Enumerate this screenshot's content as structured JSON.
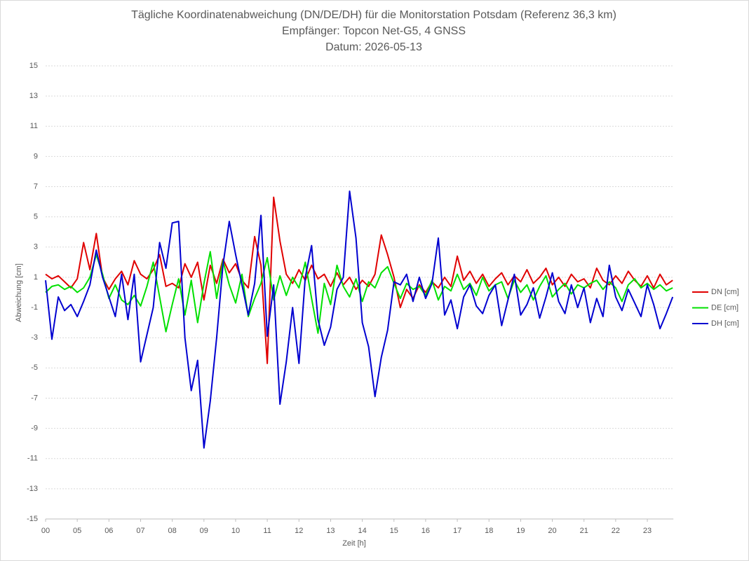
{
  "chart_data": {
    "type": "line",
    "title": "Tägliche Koordinatenabweichung (DN/DE/DH) für die Monitorstation Potsdam (Referenz 36,3 km)",
    "subtitle": [
      "Empfänger: Topcon Net-G5, 4 GNSS",
      "Datum: 2026-05-13"
    ],
    "x_label": "Zeit [h]",
    "y_label": "Abweichung [cm]",
    "xlim": [
      0,
      19.8
    ],
    "ylim": [
      -15,
      15
    ],
    "yticks": [
      15,
      13,
      11,
      9,
      7,
      5,
      3,
      1,
      -1,
      -3,
      -5,
      -7,
      -9,
      -11,
      -13,
      -15
    ],
    "xticks": [
      {
        "value": 0,
        "label": "00"
      },
      {
        "value": 1,
        "label": "05"
      },
      {
        "value": 2,
        "label": "06"
      },
      {
        "value": 3,
        "label": "07"
      },
      {
        "value": 4,
        "label": "08"
      },
      {
        "value": 5,
        "label": "09"
      },
      {
        "value": 6,
        "label": "10"
      },
      {
        "value": 7,
        "label": "11"
      },
      {
        "value": 8,
        "label": "12"
      },
      {
        "value": 9,
        "label": "13"
      },
      {
        "value": 10,
        "label": "14"
      },
      {
        "value": 11,
        "label": "15"
      },
      {
        "value": 12,
        "label": "16"
      },
      {
        "value": 13,
        "label": "17"
      },
      {
        "value": 14,
        "label": "18"
      },
      {
        "value": 15,
        "label": "19"
      },
      {
        "value": 16,
        "label": "20"
      },
      {
        "value": 17,
        "label": "21"
      },
      {
        "value": 18,
        "label": "22"
      },
      {
        "value": 19,
        "label": "23"
      }
    ],
    "grid": true,
    "legend": "right",
    "x": [
      0,
      0.2,
      0.4,
      0.6,
      0.8,
      1,
      1.2,
      1.4,
      1.6,
      1.8,
      2,
      2.2,
      2.4,
      2.6,
      2.8,
      3,
      3.2,
      3.4,
      3.6,
      3.8,
      4,
      4.2,
      4.4,
      4.6,
      4.8,
      5,
      5.2,
      5.4,
      5.6,
      5.8,
      6,
      6.2,
      6.4,
      6.6,
      6.8,
      7,
      7.2,
      7.4,
      7.6,
      7.8,
      8,
      8.2,
      8.4,
      8.6,
      8.8,
      9,
      9.2,
      9.4,
      9.6,
      9.8,
      10,
      10.2,
      10.4,
      10.6,
      10.8,
      11,
      11.2,
      11.4,
      11.6,
      11.8,
      12,
      12.2,
      12.4,
      12.6,
      12.8,
      13,
      13.2,
      13.4,
      13.6,
      13.8,
      14,
      14.2,
      14.4,
      14.6,
      14.8,
      15,
      15.2,
      15.4,
      15.6,
      15.8,
      16,
      16.2,
      16.4,
      16.6,
      16.8,
      17,
      17.2,
      17.4,
      17.6,
      17.8,
      18,
      18.2,
      18.4,
      18.6,
      18.8,
      19,
      19.2,
      19.4,
      19.6,
      19.8
    ],
    "series": [
      {
        "name": "DN [cm]",
        "color": "#e00000",
        "values": [
          1.2,
          0.9,
          1.1,
          0.7,
          0.3,
          0.9,
          3.3,
          1.5,
          3.9,
          1.0,
          0.2,
          0.9,
          1.4,
          0.5,
          2.1,
          1.2,
          0.9,
          1.5,
          2.5,
          0.4,
          0.6,
          0.3,
          1.9,
          1.0,
          2.0,
          -0.5,
          1.8,
          0.6,
          2.2,
          1.3,
          1.9,
          0.8,
          0.3,
          3.7,
          1.8,
          -4.7,
          6.3,
          3.4,
          1.2,
          0.6,
          1.5,
          0.8,
          1.8,
          0.9,
          1.2,
          0.4,
          1.3,
          0.5,
          1.0,
          0.2,
          0.8,
          0.4,
          1.2,
          3.8,
          2.5,
          1.0,
          -1.0,
          0.2,
          -0.4,
          0.5,
          0.0,
          0.7,
          0.3,
          1.0,
          0.4,
          2.4,
          0.8,
          1.4,
          0.6,
          1.2,
          0.4,
          0.9,
          1.3,
          0.5,
          1.1,
          0.7,
          1.5,
          0.6,
          1.0,
          1.6,
          0.5,
          1.0,
          0.4,
          1.2,
          0.7,
          0.9,
          0.3,
          1.6,
          0.8,
          0.5,
          1.1,
          0.6,
          1.4,
          0.8,
          0.4,
          1.1,
          0.3,
          1.2,
          0.5,
          0.8
        ]
      },
      {
        "name": "DE [cm]",
        "color": "#00e000",
        "values": [
          0.0,
          0.4,
          0.5,
          0.2,
          0.4,
          0.0,
          0.3,
          1.0,
          2.5,
          1.2,
          -0.4,
          0.5,
          -0.5,
          -0.8,
          -0.2,
          -0.9,
          0.4,
          2.0,
          -0.3,
          -2.6,
          -0.8,
          0.9,
          -1.5,
          0.8,
          -2.0,
          0.6,
          2.7,
          -0.4,
          2.1,
          0.5,
          -0.7,
          1.2,
          -1.6,
          -0.4,
          0.6,
          2.3,
          -0.5,
          1.1,
          -0.2,
          1.0,
          0.3,
          2.0,
          -0.4,
          -2.7,
          0.6,
          -0.8,
          1.8,
          0.4,
          -0.3,
          0.9,
          -0.6,
          0.7,
          0.3,
          1.3,
          1.7,
          0.6,
          -0.4,
          0.6,
          0.2,
          0.4,
          -0.2,
          0.8,
          -0.5,
          0.4,
          0.1,
          1.2,
          0.2,
          0.6,
          -0.2,
          1.0,
          0.1,
          0.5,
          0.7,
          -0.4,
          0.8,
          0.0,
          0.5,
          -0.5,
          0.4,
          1.1,
          -0.3,
          0.2,
          0.6,
          -0.1,
          0.5,
          0.3,
          0.6,
          0.8,
          0.2,
          0.7,
          0.3,
          -0.6,
          0.5,
          0.9,
          0.3,
          0.6,
          0.2,
          0.5,
          0.1,
          0.3
        ]
      },
      {
        "name": "DH [cm]",
        "color": "#0000d0",
        "values": [
          0.8,
          -3.1,
          -0.3,
          -1.2,
          -0.8,
          -1.6,
          -0.6,
          0.5,
          2.8,
          1.0,
          -0.3,
          -1.6,
          1.2,
          -1.8,
          1.2,
          -4.6,
          -2.8,
          -1.0,
          3.3,
          1.6,
          4.6,
          4.7,
          -3.0,
          -6.5,
          -4.5,
          -10.3,
          -7.2,
          -3.0,
          1.8,
          4.7,
          2.5,
          0.5,
          -1.5,
          0.6,
          5.1,
          -2.9,
          0.5,
          -7.4,
          -4.6,
          -1.0,
          -4.7,
          1.0,
          3.1,
          -1.8,
          -3.5,
          -2.3,
          0.2,
          1.0,
          6.7,
          3.6,
          -2.0,
          -3.6,
          -6.9,
          -4.3,
          -2.5,
          0.7,
          0.5,
          1.2,
          -0.6,
          1.0,
          -0.4,
          0.6,
          3.6,
          -1.5,
          -0.5,
          -2.4,
          -0.3,
          0.5,
          -0.9,
          -1.4,
          -0.2,
          0.5,
          -2.2,
          -0.5,
          1.2,
          -1.5,
          -0.8,
          0.3,
          -1.7,
          -0.3,
          1.3,
          -0.6,
          -1.4,
          0.5,
          -1.0,
          0.3,
          -2.0,
          -0.4,
          -1.6,
          1.8,
          -0.3,
          -1.2,
          0.2,
          -0.7,
          -1.6,
          0.5,
          -0.8,
          -2.4,
          -1.4,
          -0.3
        ]
      }
    ]
  }
}
